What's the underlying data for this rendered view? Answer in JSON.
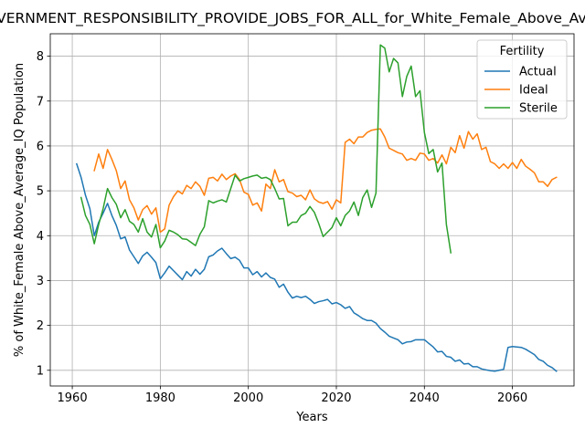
{
  "chart_data": {
    "type": "line",
    "title": "GOVERNMENT_RESPONSIBILITY_PROVIDE_JOBS_FOR_ALL_for_White_Female_Above_Average_IQ",
    "xlabel": "Years",
    "ylabel": "% of White_Female Above_Average_IQ Population",
    "xlim": [
      1955,
      2074
    ],
    "ylim": [
      0.65,
      8.5
    ],
    "xticks": [
      1960,
      1980,
      2000,
      2020,
      2040,
      2060
    ],
    "yticks": [
      1,
      2,
      3,
      4,
      5,
      6,
      7,
      8
    ],
    "grid": true,
    "legend": {
      "title": "Fertility",
      "placement": "top-right"
    },
    "series": [
      {
        "name": "Actual",
        "color": "#1f77b4",
        "x": [
          1961,
          1962,
          1963,
          1964,
          1965,
          1966,
          1967,
          1968,
          1969,
          1970,
          1971,
          1972,
          1973,
          1974,
          1975,
          1976,
          1977,
          1978,
          1979,
          1980,
          1981,
          1982,
          1983,
          1984,
          1985,
          1986,
          1987,
          1988,
          1989,
          1990,
          1991,
          1992,
          1993,
          1994,
          1995,
          1996,
          1997,
          1998,
          1999,
          2000,
          2001,
          2002,
          2003,
          2004,
          2005,
          2006,
          2007,
          2008,
          2009,
          2010,
          2011,
          2012,
          2013,
          2014,
          2015,
          2016,
          2017,
          2018,
          2019,
          2020,
          2021,
          2022,
          2023,
          2024,
          2025,
          2026,
          2027,
          2028,
          2029,
          2030,
          2031,
          2032,
          2033,
          2034,
          2035,
          2036,
          2037,
          2038,
          2039,
          2040,
          2041,
          2042,
          2043,
          2044,
          2045,
          2046,
          2047,
          2048,
          2049,
          2050,
          2051,
          2052,
          2053,
          2054,
          2055,
          2056,
          2057,
          2058,
          2059,
          2060,
          2061,
          2062,
          2063,
          2064,
          2065,
          2066,
          2067,
          2068,
          2069,
          2070
        ],
        "y": [
          5.6,
          5.3,
          4.9,
          4.6,
          4.0,
          4.3,
          4.5,
          4.72,
          4.45,
          4.23,
          3.93,
          3.97,
          3.68,
          3.53,
          3.38,
          3.55,
          3.63,
          3.52,
          3.4,
          3.04,
          3.17,
          3.32,
          3.22,
          3.12,
          3.02,
          3.2,
          3.1,
          3.25,
          3.14,
          3.25,
          3.53,
          3.57,
          3.66,
          3.72,
          3.6,
          3.49,
          3.52,
          3.45,
          3.28,
          3.28,
          3.13,
          3.2,
          3.08,
          3.17,
          3.07,
          3.03,
          2.85,
          2.92,
          2.74,
          2.61,
          2.65,
          2.62,
          2.65,
          2.58,
          2.49,
          2.53,
          2.55,
          2.58,
          2.48,
          2.51,
          2.46,
          2.38,
          2.42,
          2.28,
          2.22,
          2.15,
          2.11,
          2.11,
          2.05,
          1.93,
          1.85,
          1.76,
          1.72,
          1.68,
          1.59,
          1.63,
          1.64,
          1.68,
          1.68,
          1.68,
          1.6,
          1.52,
          1.41,
          1.42,
          1.31,
          1.29,
          1.2,
          1.23,
          1.14,
          1.15,
          1.08,
          1.08,
          1.03,
          1.01,
          0.99,
          0.98,
          1.0,
          1.02,
          1.51,
          1.53,
          1.52,
          1.51,
          1.47,
          1.41,
          1.35,
          1.24,
          1.2,
          1.11,
          1.06,
          0.98
        ]
      },
      {
        "name": "Ideal",
        "color": "#ff7f0e",
        "x": [
          1965,
          1966,
          1967,
          1968,
          1969,
          1970,
          1971,
          1972,
          1973,
          1974,
          1975,
          1976,
          1977,
          1978,
          1979,
          1980,
          1981,
          1982,
          1983,
          1984,
          1985,
          1986,
          1987,
          1988,
          1989,
          1990,
          1991,
          1992,
          1993,
          1994,
          1995,
          1996,
          1997,
          1998,
          1999,
          2000,
          2001,
          2002,
          2003,
          2004,
          2005,
          2006,
          2007,
          2008,
          2009,
          2010,
          2011,
          2012,
          2013,
          2014,
          2015,
          2016,
          2017,
          2018,
          2019,
          2020,
          2021,
          2022,
          2023,
          2024,
          2025,
          2026,
          2027,
          2028,
          2029,
          2030,
          2031,
          2032,
          2033,
          2034,
          2035,
          2036,
          2037,
          2038,
          2039,
          2040,
          2041,
          2042,
          2043,
          2044,
          2045,
          2046,
          2047,
          2048,
          2049,
          2050,
          2051,
          2052,
          2053,
          2054,
          2055,
          2056,
          2057,
          2058,
          2059,
          2060,
          2061,
          2062,
          2063,
          2064,
          2065,
          2066,
          2067,
          2068,
          2069,
          2070
        ],
        "y": [
          5.45,
          5.82,
          5.5,
          5.92,
          5.7,
          5.45,
          5.05,
          5.22,
          4.8,
          4.62,
          4.35,
          4.58,
          4.67,
          4.48,
          4.62,
          4.08,
          4.15,
          4.68,
          4.87,
          5.0,
          4.93,
          5.12,
          5.05,
          5.2,
          5.1,
          4.9,
          5.28,
          5.3,
          5.22,
          5.37,
          5.25,
          5.33,
          5.38,
          5.25,
          4.97,
          4.92,
          4.68,
          4.73,
          4.55,
          5.15,
          5.05,
          5.47,
          5.2,
          5.25,
          4.98,
          4.95,
          4.87,
          4.9,
          4.8,
          5.02,
          4.82,
          4.75,
          4.72,
          4.76,
          4.59,
          4.8,
          4.73,
          6.08,
          6.15,
          6.05,
          6.2,
          6.2,
          6.3,
          6.35,
          6.37,
          6.38,
          6.2,
          5.95,
          5.9,
          5.85,
          5.82,
          5.68,
          5.72,
          5.68,
          5.84,
          5.82,
          5.68,
          5.72,
          5.62,
          5.8,
          5.6,
          5.97,
          5.85,
          6.23,
          5.95,
          6.32,
          6.15,
          6.27,
          5.92,
          5.97,
          5.65,
          5.6,
          5.5,
          5.6,
          5.5,
          5.63,
          5.5,
          5.7,
          5.55,
          5.48,
          5.4,
          5.2,
          5.2,
          5.1,
          5.25,
          5.3
        ]
      },
      {
        "name": "Sterile",
        "color": "#2ca02c",
        "x": [
          1962,
          1963,
          1964,
          1965,
          1966,
          1967,
          1968,
          1969,
          1970,
          1971,
          1972,
          1973,
          1974,
          1975,
          1976,
          1977,
          1978,
          1979,
          1980,
          1981,
          1982,
          1983,
          1984,
          1985,
          1986,
          1987,
          1988,
          1989,
          1990,
          1991,
          1992,
          1993,
          1994,
          1995,
          1996,
          1997,
          1998,
          1999,
          2000,
          2001,
          2002,
          2003,
          2004,
          2005,
          2006,
          2007,
          2008,
          2009,
          2010,
          2011,
          2012,
          2013,
          2014,
          2015,
          2016,
          2017,
          2018,
          2019,
          2020,
          2021,
          2022,
          2023,
          2024,
          2025,
          2026,
          2027,
          2028,
          2029,
          2030,
          2031,
          2032,
          2033,
          2034,
          2035,
          2036,
          2037,
          2038,
          2039,
          2040,
          2041,
          2042,
          2043,
          2044,
          2045,
          2046
        ],
        "y": [
          4.85,
          4.45,
          4.25,
          3.82,
          4.25,
          4.6,
          5.05,
          4.85,
          4.7,
          4.4,
          4.58,
          4.32,
          4.25,
          4.08,
          4.38,
          4.08,
          3.97,
          4.25,
          3.73,
          3.88,
          4.12,
          4.08,
          4.02,
          3.93,
          3.92,
          3.85,
          3.78,
          4.03,
          4.2,
          4.78,
          4.73,
          4.77,
          4.8,
          4.75,
          5.05,
          5.35,
          5.22,
          5.27,
          5.3,
          5.33,
          5.35,
          5.28,
          5.3,
          5.25,
          5.05,
          4.82,
          4.83,
          4.22,
          4.3,
          4.3,
          4.45,
          4.5,
          4.65,
          4.52,
          4.27,
          3.98,
          4.08,
          4.18,
          4.4,
          4.22,
          4.45,
          4.55,
          4.75,
          4.45,
          4.85,
          5.02,
          4.63,
          4.95,
          8.25,
          8.18,
          7.65,
          7.95,
          7.85,
          7.1,
          7.55,
          7.78,
          7.1,
          7.23,
          6.3,
          5.83,
          5.92,
          5.42,
          5.62,
          4.25,
          3.62
        ]
      }
    ]
  }
}
